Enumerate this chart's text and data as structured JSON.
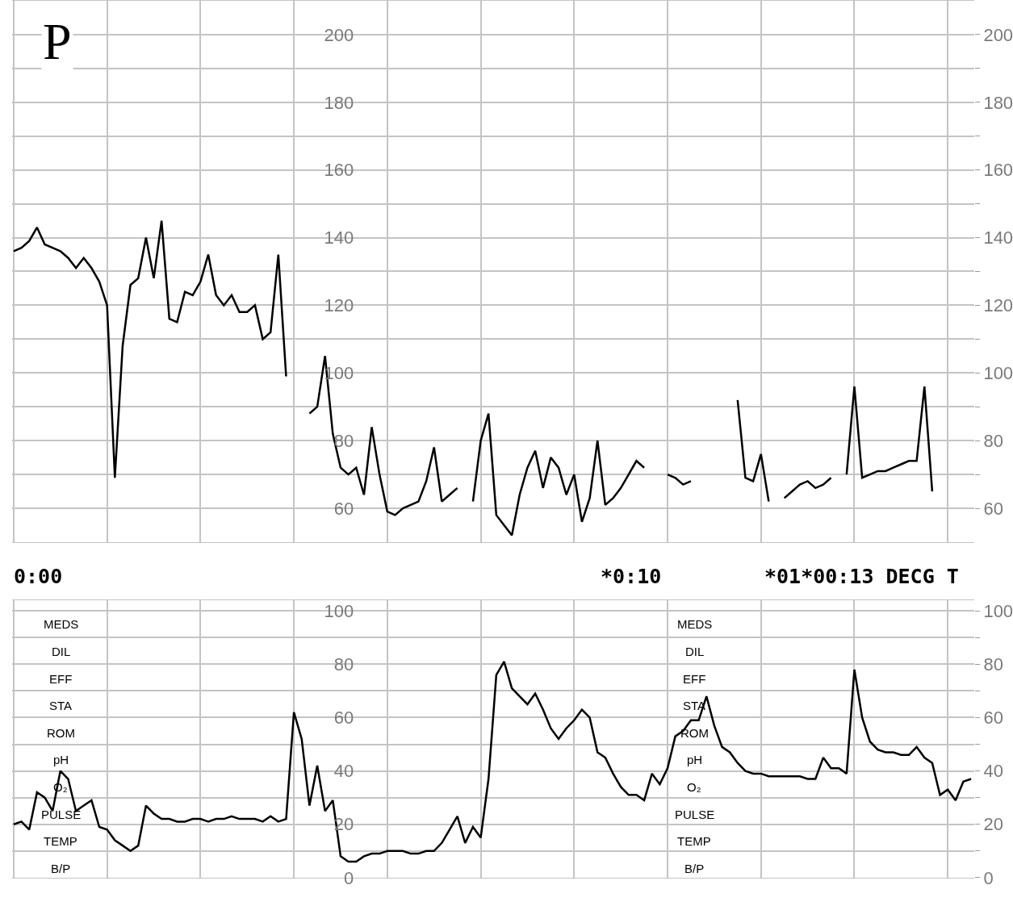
{
  "chart_data": [
    {
      "type": "line",
      "title": "P",
      "tick_labels": "y",
      "grid": true,
      "marker": "none",
      "line_style": "solid",
      "categories": [
        null,
        null,
        null,
        null,
        null,
        null,
        null,
        null,
        null,
        null,
        null,
        null,
        null,
        null,
        null,
        null,
        null,
        null,
        null,
        null,
        null,
        null,
        null,
        null,
        null,
        null,
        null,
        null,
        null,
        null,
        null,
        null,
        null,
        null,
        null,
        null,
        null,
        null,
        null,
        null,
        null,
        null,
        null,
        null,
        null,
        null,
        null,
        null,
        null,
        null,
        null,
        null,
        null,
        null,
        null,
        null,
        null,
        null,
        null,
        null,
        null,
        null,
        null,
        null,
        null,
        null,
        null,
        null,
        null,
        null,
        null,
        null,
        null,
        null,
        null,
        null,
        null,
        null,
        null,
        null,
        null,
        null,
        null,
        null,
        null,
        null,
        null,
        null,
        null,
        null,
        null,
        null,
        null,
        null,
        null,
        null,
        null,
        null,
        null,
        null,
        null,
        null,
        null,
        null,
        null,
        null,
        null,
        null,
        null,
        null,
        null,
        null,
        null,
        null,
        null,
        null,
        null,
        null,
        null,
        null,
        null,
        null,
        null,
        null
      ],
      "series": [
        {
          "color": "#000000",
          "values": [
            136,
            137,
            139,
            143,
            138,
            137,
            136,
            134,
            131,
            134,
            131,
            127,
            120,
            69,
            108,
            126,
            128,
            140,
            128,
            145,
            116,
            115,
            124,
            123,
            127,
            135,
            123,
            120,
            123,
            118,
            118,
            120,
            110,
            112,
            135,
            99,
            null,
            null,
            88,
            90,
            105,
            82,
            72,
            70,
            72,
            64,
            84,
            70,
            59,
            58,
            60,
            61,
            62,
            68,
            78,
            62,
            64,
            66,
            null,
            62,
            80,
            88,
            58,
            55,
            52,
            64,
            72,
            77,
            66,
            75,
            72,
            64,
            70,
            56,
            63,
            80,
            61,
            63,
            66,
            70,
            74,
            72,
            null,
            null,
            70,
            69,
            67,
            68,
            null,
            null,
            null,
            null,
            null,
            92,
            69,
            68,
            76,
            62,
            null,
            63,
            65,
            67,
            68,
            66,
            67,
            69,
            null,
            70,
            96,
            69,
            70,
            71,
            71,
            72,
            73,
            74,
            74,
            96,
            65,
            null,
            null,
            null,
            null,
            null
          ]
        }
      ],
      "ylim": [
        50,
        210
      ],
      "yticks": [
        60,
        {
          "value": 70,
          "label": null
        },
        80,
        {
          "value": 90,
          "label": null
        },
        100,
        {
          "value": 110,
          "label": null
        },
        120,
        {
          "value": 130,
          "label": null
        },
        140,
        {
          "value": 150,
          "label": null
        },
        160,
        {
          "value": 170,
          "label": null
        },
        180,
        {
          "value": 190,
          "label": null
        },
        200
      ],
      "y2lim": [
        50,
        210
      ],
      "y2ticks": [
        60,
        80,
        100,
        120,
        140,
        160,
        180,
        200
      ]
    },
    {
      "type": "line",
      "tick_labels": "y",
      "grid": true,
      "marker": "none",
      "line_style": "solid",
      "annotations": [
        "0:00",
        "*0:10",
        "*01*00:13 DECG T",
        "MEDS",
        "DIL",
        "EFF",
        "STA",
        "ROM",
        "pH",
        "O₂",
        "PULSE",
        "TEMP",
        "B/P",
        "MEDS",
        "DIL",
        "EFF",
        "STA",
        "ROM",
        "pH",
        "O₂",
        "PULSE",
        "TEMP",
        "B/P"
      ],
      "categories": [
        null,
        null,
        null,
        null,
        null,
        null,
        null,
        null,
        null,
        null,
        null,
        null,
        null,
        null,
        null,
        null,
        null,
        null,
        null,
        null,
        null,
        null,
        null,
        null,
        null,
        null,
        null,
        null,
        null,
        null,
        null,
        null,
        null,
        null,
        null,
        null,
        null,
        null,
        null,
        null,
        null,
        null,
        null,
        null,
        null,
        null,
        null,
        null,
        null,
        null,
        null,
        null,
        null,
        null,
        null,
        null,
        null,
        null,
        null,
        null,
        null,
        null,
        null,
        null,
        null,
        null,
        null,
        null,
        null,
        null,
        null,
        null,
        null,
        null,
        null,
        null,
        null,
        null,
        null,
        null,
        null,
        null,
        null,
        null,
        null,
        null,
        null,
        null,
        null,
        null,
        null,
        null,
        null,
        null,
        null,
        null,
        null,
        null,
        null,
        null,
        null,
        null,
        null,
        null,
        null,
        null,
        null,
        null,
        null,
        null,
        null,
        null,
        null,
        null,
        null,
        null,
        null,
        null,
        null,
        null,
        null,
        null,
        null,
        null
      ],
      "series": [
        {
          "color": "#000000",
          "values": [
            20,
            21,
            18,
            32,
            30,
            25,
            40,
            37,
            25,
            27,
            29,
            19,
            18,
            14,
            12,
            10,
            12,
            27,
            24,
            22,
            22,
            21,
            21,
            22,
            22,
            21,
            22,
            22,
            23,
            22,
            22,
            22,
            21,
            23,
            21,
            22,
            62,
            52,
            27,
            42,
            25,
            29,
            8,
            6,
            6,
            8,
            9,
            9,
            10,
            10,
            10,
            9,
            9,
            10,
            10,
            13,
            18,
            23,
            13,
            19,
            15,
            37,
            76,
            81,
            71,
            68,
            65,
            69,
            63,
            56,
            52,
            56,
            59,
            63,
            60,
            47,
            45,
            39,
            34,
            31,
            31,
            29,
            39,
            35,
            41,
            53,
            55,
            59,
            59,
            68,
            57,
            49,
            47,
            43,
            40,
            39,
            39,
            38,
            38,
            38,
            38,
            38,
            37,
            37,
            45,
            41,
            41,
            39,
            78,
            60,
            51,
            48,
            47,
            47,
            46,
            46,
            49,
            45,
            43,
            31,
            33,
            29,
            36,
            37
          ]
        }
      ],
      "ylim": [
        0,
        104
      ],
      "yticks": [
        0,
        {
          "value": 10,
          "label": null
        },
        20,
        {
          "value": 30,
          "label": null
        },
        40,
        {
          "value": 50,
          "label": null
        },
        60,
        {
          "value": 70,
          "label": null
        },
        80,
        {
          "value": 90,
          "label": null
        },
        100
      ],
      "y2lim": [
        0,
        104
      ],
      "y2ticks": [
        0,
        20,
        40,
        60,
        80,
        100
      ]
    }
  ]
}
